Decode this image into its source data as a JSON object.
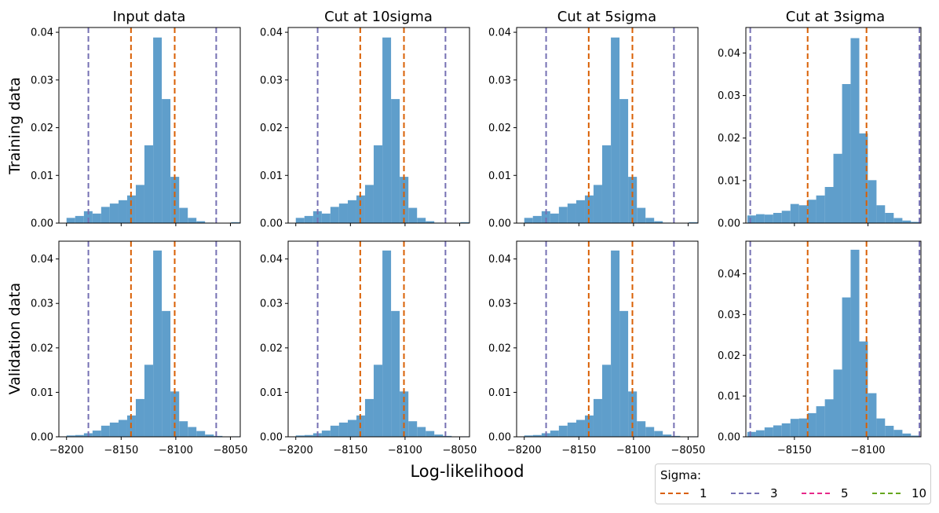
{
  "figure": {
    "xlabel": "Log-likelihood",
    "row_labels": [
      "Training data",
      "Validation data"
    ],
    "column_titles": [
      "Input data",
      "Cut at 10sigma",
      "Cut at 5sigma",
      "Cut at 3sigma"
    ]
  },
  "colors": {
    "bars": "#5f9ecb",
    "sigma_1": "#d95f02",
    "sigma_3": "#7570b3",
    "sigma_5": "#e7298a",
    "sigma_10": "#66a61e"
  },
  "legend": {
    "title": "Sigma:",
    "entries": [
      {
        "label": "1",
        "color": "#d95f02"
      },
      {
        "label": "3",
        "color": "#7570b3"
      },
      {
        "label": "5",
        "color": "#e7298a"
      },
      {
        "label": "10",
        "color": "#66a61e"
      }
    ]
  },
  "chart_data": [
    {
      "type": "bar",
      "row": "Training data",
      "title": "Input data",
      "xlim": [
        -8207,
        -8041
      ],
      "ylim": [
        0,
        0.041
      ],
      "xticks": [
        -8200,
        -8150,
        -8100,
        -8050
      ],
      "yticks": [
        0.0,
        0.01,
        0.02,
        0.03,
        0.04
      ],
      "bin_edges": [
        -8200.0,
        -8192.1,
        -8184.1,
        -8176.2,
        -8168.3,
        -8160.4,
        -8152.4,
        -8144.5,
        -8136.6,
        -8128.7,
        -8120.7,
        -8112.8,
        -8104.9,
        -8096.9,
        -8089.0,
        -8081.1,
        -8073.2,
        -8065.2,
        -8057.3,
        -8049.4,
        -8041.5
      ],
      "values": [
        0.0011,
        0.0015,
        0.0025,
        0.002,
        0.0034,
        0.0041,
        0.0048,
        0.0058,
        0.008,
        0.0163,
        0.0389,
        0.026,
        0.0097,
        0.0032,
        0.0011,
        0.0004,
        0.0001,
        0.0,
        0.0,
        0.0002
      ],
      "vlines": [
        {
          "sigma": "1",
          "x": -8141
        },
        {
          "sigma": "1",
          "x": -8101
        },
        {
          "sigma": "3",
          "x": -8180
        },
        {
          "sigma": "3",
          "x": -8063
        }
      ]
    },
    {
      "type": "bar",
      "row": "Training data",
      "title": "Cut at 10sigma",
      "xlim": [
        -8207,
        -8041
      ],
      "ylim": [
        0,
        0.041
      ],
      "xticks": [
        -8200,
        -8150,
        -8100,
        -8050
      ],
      "yticks": [
        0.0,
        0.01,
        0.02,
        0.03,
        0.04
      ],
      "bin_edges": [
        -8200.0,
        -8192.1,
        -8184.1,
        -8176.2,
        -8168.3,
        -8160.4,
        -8152.4,
        -8144.5,
        -8136.6,
        -8128.7,
        -8120.7,
        -8112.8,
        -8104.9,
        -8096.9,
        -8089.0,
        -8081.1,
        -8073.2,
        -8065.2,
        -8057.3,
        -8049.4,
        -8041.5
      ],
      "values": [
        0.0011,
        0.0015,
        0.0025,
        0.002,
        0.0034,
        0.0041,
        0.0048,
        0.0058,
        0.008,
        0.0163,
        0.0389,
        0.026,
        0.0097,
        0.0032,
        0.0011,
        0.0004,
        0.0001,
        0.0,
        0.0,
        0.0002
      ],
      "vlines": [
        {
          "sigma": "1",
          "x": -8141
        },
        {
          "sigma": "1",
          "x": -8101
        },
        {
          "sigma": "3",
          "x": -8180
        },
        {
          "sigma": "3",
          "x": -8063
        }
      ]
    },
    {
      "type": "bar",
      "row": "Training data",
      "title": "Cut at 5sigma",
      "xlim": [
        -8207,
        -8041
      ],
      "ylim": [
        0,
        0.041
      ],
      "xticks": [
        -8200,
        -8150,
        -8100,
        -8050
      ],
      "yticks": [
        0.0,
        0.01,
        0.02,
        0.03,
        0.04
      ],
      "bin_edges": [
        -8200.0,
        -8192.1,
        -8184.1,
        -8176.2,
        -8168.3,
        -8160.4,
        -8152.4,
        -8144.5,
        -8136.6,
        -8128.7,
        -8120.7,
        -8112.8,
        -8104.9,
        -8096.9,
        -8089.0,
        -8081.1,
        -8073.2,
        -8065.2,
        -8057.3,
        -8049.4,
        -8041.5
      ],
      "values": [
        0.0011,
        0.0015,
        0.0025,
        0.002,
        0.0034,
        0.0041,
        0.0048,
        0.0058,
        0.008,
        0.0163,
        0.0389,
        0.026,
        0.0097,
        0.0032,
        0.0011,
        0.0004,
        0.0001,
        0.0,
        0.0,
        0.0002
      ],
      "vlines": [
        {
          "sigma": "1",
          "x": -8141
        },
        {
          "sigma": "1",
          "x": -8101
        },
        {
          "sigma": "3",
          "x": -8180
        },
        {
          "sigma": "3",
          "x": -8063
        }
      ]
    },
    {
      "type": "bar",
      "row": "Training data",
      "title": "Cut at 3sigma",
      "xlim": [
        -8183,
        -8064
      ],
      "ylim": [
        0,
        0.046
      ],
      "xticks": [
        -8150,
        -8100
      ],
      "yticks": [
        0.0,
        0.01,
        0.02,
        0.03,
        0.04
      ],
      "bin_edges": [
        -8182.0,
        -8176.1,
        -8170.3,
        -8164.4,
        -8158.6,
        -8152.7,
        -8146.9,
        -8141.0,
        -8135.2,
        -8129.3,
        -8123.5,
        -8117.6,
        -8111.8,
        -8105.9,
        -8100.1,
        -8094.2,
        -8088.4,
        -8082.5,
        -8076.6,
        -8070.8,
        -8064.9
      ],
      "values": [
        0.0018,
        0.0021,
        0.002,
        0.0024,
        0.0029,
        0.0045,
        0.0042,
        0.0055,
        0.0065,
        0.0085,
        0.0163,
        0.0327,
        0.0435,
        0.0211,
        0.0101,
        0.0042,
        0.0024,
        0.0012,
        0.0006,
        0.0003
      ],
      "vlines": [
        {
          "sigma": "1",
          "x": -8141
        },
        {
          "sigma": "1",
          "x": -8101
        },
        {
          "sigma": "3",
          "x": -8180
        },
        {
          "sigma": "3",
          "x": -8065
        }
      ]
    },
    {
      "type": "bar",
      "row": "Validation data",
      "title": "Input data",
      "xlim": [
        -8207,
        -8041
      ],
      "ylim": [
        0,
        0.044
      ],
      "xticks": [
        -8200,
        -8150,
        -8100,
        -8050
      ],
      "yticks": [
        0.0,
        0.01,
        0.02,
        0.03,
        0.04
      ],
      "bin_edges": [
        -8200.0,
        -8192.1,
        -8184.1,
        -8176.2,
        -8168.3,
        -8160.4,
        -8152.4,
        -8144.5,
        -8136.6,
        -8128.7,
        -8120.7,
        -8112.8,
        -8104.9,
        -8096.9,
        -8089.0,
        -8081.1,
        -8073.2,
        -8065.2,
        -8057.3,
        -8049.4,
        -8041.5
      ],
      "values": [
        0.0003,
        0.0004,
        0.0008,
        0.0014,
        0.0025,
        0.0032,
        0.0038,
        0.0048,
        0.0085,
        0.0162,
        0.0419,
        0.0283,
        0.0102,
        0.0035,
        0.0022,
        0.0013,
        0.0005,
        0.0002,
        0.0,
        0.0001
      ],
      "vlines": [
        {
          "sigma": "1",
          "x": -8141
        },
        {
          "sigma": "1",
          "x": -8101
        },
        {
          "sigma": "3",
          "x": -8180
        },
        {
          "sigma": "3",
          "x": -8063
        }
      ]
    },
    {
      "type": "bar",
      "row": "Validation data",
      "title": "Cut at 10sigma",
      "xlim": [
        -8207,
        -8041
      ],
      "ylim": [
        0,
        0.044
      ],
      "xticks": [
        -8200,
        -8150,
        -8100,
        -8050
      ],
      "yticks": [
        0.0,
        0.01,
        0.02,
        0.03,
        0.04
      ],
      "bin_edges": [
        -8200.0,
        -8192.1,
        -8184.1,
        -8176.2,
        -8168.3,
        -8160.4,
        -8152.4,
        -8144.5,
        -8136.6,
        -8128.7,
        -8120.7,
        -8112.8,
        -8104.9,
        -8096.9,
        -8089.0,
        -8081.1,
        -8073.2,
        -8065.2,
        -8057.3,
        -8049.4,
        -8041.5
      ],
      "values": [
        0.0003,
        0.0004,
        0.0008,
        0.0014,
        0.0025,
        0.0032,
        0.0038,
        0.0048,
        0.0085,
        0.0162,
        0.0419,
        0.0283,
        0.0102,
        0.0035,
        0.0022,
        0.0013,
        0.0005,
        0.0002,
        0.0,
        0.0001
      ],
      "vlines": [
        {
          "sigma": "1",
          "x": -8141
        },
        {
          "sigma": "1",
          "x": -8101
        },
        {
          "sigma": "3",
          "x": -8180
        },
        {
          "sigma": "3",
          "x": -8063
        }
      ]
    },
    {
      "type": "bar",
      "row": "Validation data",
      "title": "Cut at 5sigma",
      "xlim": [
        -8207,
        -8041
      ],
      "ylim": [
        0,
        0.044
      ],
      "xticks": [
        -8200,
        -8150,
        -8100,
        -8050
      ],
      "yticks": [
        0.0,
        0.01,
        0.02,
        0.03,
        0.04
      ],
      "bin_edges": [
        -8200.0,
        -8192.1,
        -8184.1,
        -8176.2,
        -8168.3,
        -8160.4,
        -8152.4,
        -8144.5,
        -8136.6,
        -8128.7,
        -8120.7,
        -8112.8,
        -8104.9,
        -8096.9,
        -8089.0,
        -8081.1,
        -8073.2,
        -8065.2,
        -8057.3,
        -8049.4,
        -8041.5
      ],
      "values": [
        0.0003,
        0.0004,
        0.0008,
        0.0014,
        0.0025,
        0.0032,
        0.0038,
        0.0048,
        0.0085,
        0.0162,
        0.0419,
        0.0283,
        0.0102,
        0.0035,
        0.0022,
        0.0013,
        0.0005,
        0.0002,
        0.0,
        0.0001
      ],
      "vlines": [
        {
          "sigma": "1",
          "x": -8141
        },
        {
          "sigma": "1",
          "x": -8101
        },
        {
          "sigma": "3",
          "x": -8180
        },
        {
          "sigma": "3",
          "x": -8063
        }
      ]
    },
    {
      "type": "bar",
      "row": "Validation data",
      "title": "Cut at 3sigma",
      "xlim": [
        -8183,
        -8064
      ],
      "ylim": [
        0,
        0.048
      ],
      "xticks": [
        -8150,
        -8100
      ],
      "yticks": [
        0.0,
        0.01,
        0.02,
        0.03,
        0.04
      ],
      "bin_edges": [
        -8182.0,
        -8176.1,
        -8170.3,
        -8164.4,
        -8158.6,
        -8152.7,
        -8146.9,
        -8141.0,
        -8135.2,
        -8129.3,
        -8123.5,
        -8117.6,
        -8111.8,
        -8105.9,
        -8100.1,
        -8094.2,
        -8088.4,
        -8082.5,
        -8076.6,
        -8070.8,
        -8064.9
      ],
      "values": [
        0.0012,
        0.0016,
        0.0023,
        0.0028,
        0.0033,
        0.0044,
        0.0045,
        0.0058,
        0.0075,
        0.0092,
        0.0165,
        0.0342,
        0.0459,
        0.0234,
        0.0107,
        0.0045,
        0.0027,
        0.0017,
        0.0008,
        0.0003
      ],
      "vlines": [
        {
          "sigma": "1",
          "x": -8141
        },
        {
          "sigma": "1",
          "x": -8101
        },
        {
          "sigma": "3",
          "x": -8180
        },
        {
          "sigma": "3",
          "x": -8065
        }
      ]
    }
  ]
}
